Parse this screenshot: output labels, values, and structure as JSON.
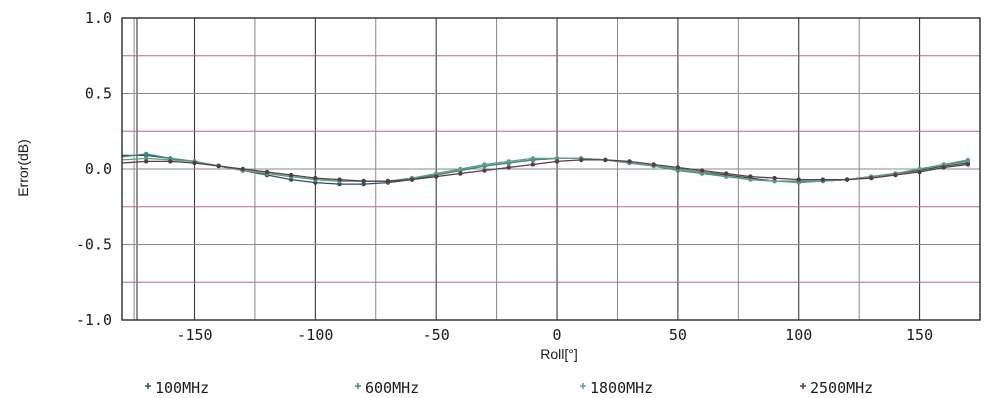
{
  "chart_data": {
    "type": "line",
    "title": "",
    "xlabel": "Roll[°]",
    "ylabel": "Error(dB)",
    "xlim": [
      -180,
      175
    ],
    "ylim": [
      -1.0,
      1.0
    ],
    "x_ticks": [
      "-150",
      "-100",
      "-50",
      "0",
      "50",
      "100",
      "150"
    ],
    "x_tick_values": [
      -150,
      -100,
      -50,
      0,
      50,
      100,
      150
    ],
    "y_ticks": [
      "1.0",
      "0.5",
      "0.0",
      "-0.5",
      "-1.0"
    ],
    "y_tick_values": [
      1.0,
      0.5,
      0.0,
      -0.5,
      -1.0
    ],
    "grid": true,
    "legend_position": "bottom",
    "x": [
      -180,
      -170,
      -160,
      -150,
      -140,
      -130,
      -120,
      -110,
      -100,
      -90,
      -80,
      -70,
      -60,
      -50,
      -40,
      -30,
      -20,
      -10,
      0,
      10,
      20,
      30,
      40,
      50,
      60,
      70,
      80,
      90,
      100,
      110,
      120,
      130,
      140,
      150,
      160,
      170
    ],
    "series": [
      {
        "name": "100MHz",
        "color": "#2f4f5f",
        "values": [
          0.09,
          0.09,
          0.07,
          0.05,
          0.02,
          -0.01,
          -0.04,
          -0.07,
          -0.09,
          -0.1,
          -0.1,
          -0.09,
          -0.07,
          -0.04,
          -0.01,
          0.02,
          0.04,
          0.06,
          0.07,
          0.07,
          0.06,
          0.04,
          0.02,
          0.0,
          -0.02,
          -0.04,
          -0.06,
          -0.08,
          -0.08,
          -0.08,
          -0.07,
          -0.05,
          -0.03,
          -0.01,
          0.02,
          0.04
        ]
      },
      {
        "name": "600MHz",
        "color": "#3a8a8a",
        "values": [
          0.08,
          0.1,
          0.07,
          0.05,
          0.02,
          -0.01,
          -0.03,
          -0.05,
          -0.07,
          -0.08,
          -0.08,
          -0.08,
          -0.06,
          -0.04,
          -0.01,
          0.02,
          0.04,
          0.06,
          0.07,
          0.07,
          0.06,
          0.04,
          0.02,
          -0.01,
          -0.03,
          -0.05,
          -0.07,
          -0.08,
          -0.08,
          -0.08,
          -0.07,
          -0.05,
          -0.03,
          0.0,
          0.03,
          0.05
        ]
      },
      {
        "name": "1800MHz",
        "color": "#5f9f7f",
        "values": [
          0.06,
          0.07,
          0.06,
          0.05,
          0.02,
          -0.01,
          -0.03,
          -0.05,
          -0.07,
          -0.08,
          -0.08,
          -0.08,
          -0.06,
          -0.03,
          0.0,
          0.03,
          0.05,
          0.07,
          0.07,
          0.07,
          0.06,
          0.04,
          0.02,
          0.0,
          -0.02,
          -0.05,
          -0.07,
          -0.08,
          -0.09,
          -0.08,
          -0.07,
          -0.05,
          -0.03,
          0.0,
          0.03,
          0.06
        ]
      },
      {
        "name": "2500MHz",
        "color": "#5a3a44",
        "values": [
          0.04,
          0.05,
          0.05,
          0.04,
          0.02,
          0.0,
          -0.02,
          -0.04,
          -0.06,
          -0.07,
          -0.08,
          -0.08,
          -0.07,
          -0.05,
          -0.03,
          -0.01,
          0.01,
          0.03,
          0.05,
          0.06,
          0.06,
          0.05,
          0.03,
          0.01,
          -0.01,
          -0.03,
          -0.05,
          -0.06,
          -0.07,
          -0.07,
          -0.07,
          -0.06,
          -0.04,
          -0.02,
          0.01,
          0.03
        ]
      }
    ]
  }
}
